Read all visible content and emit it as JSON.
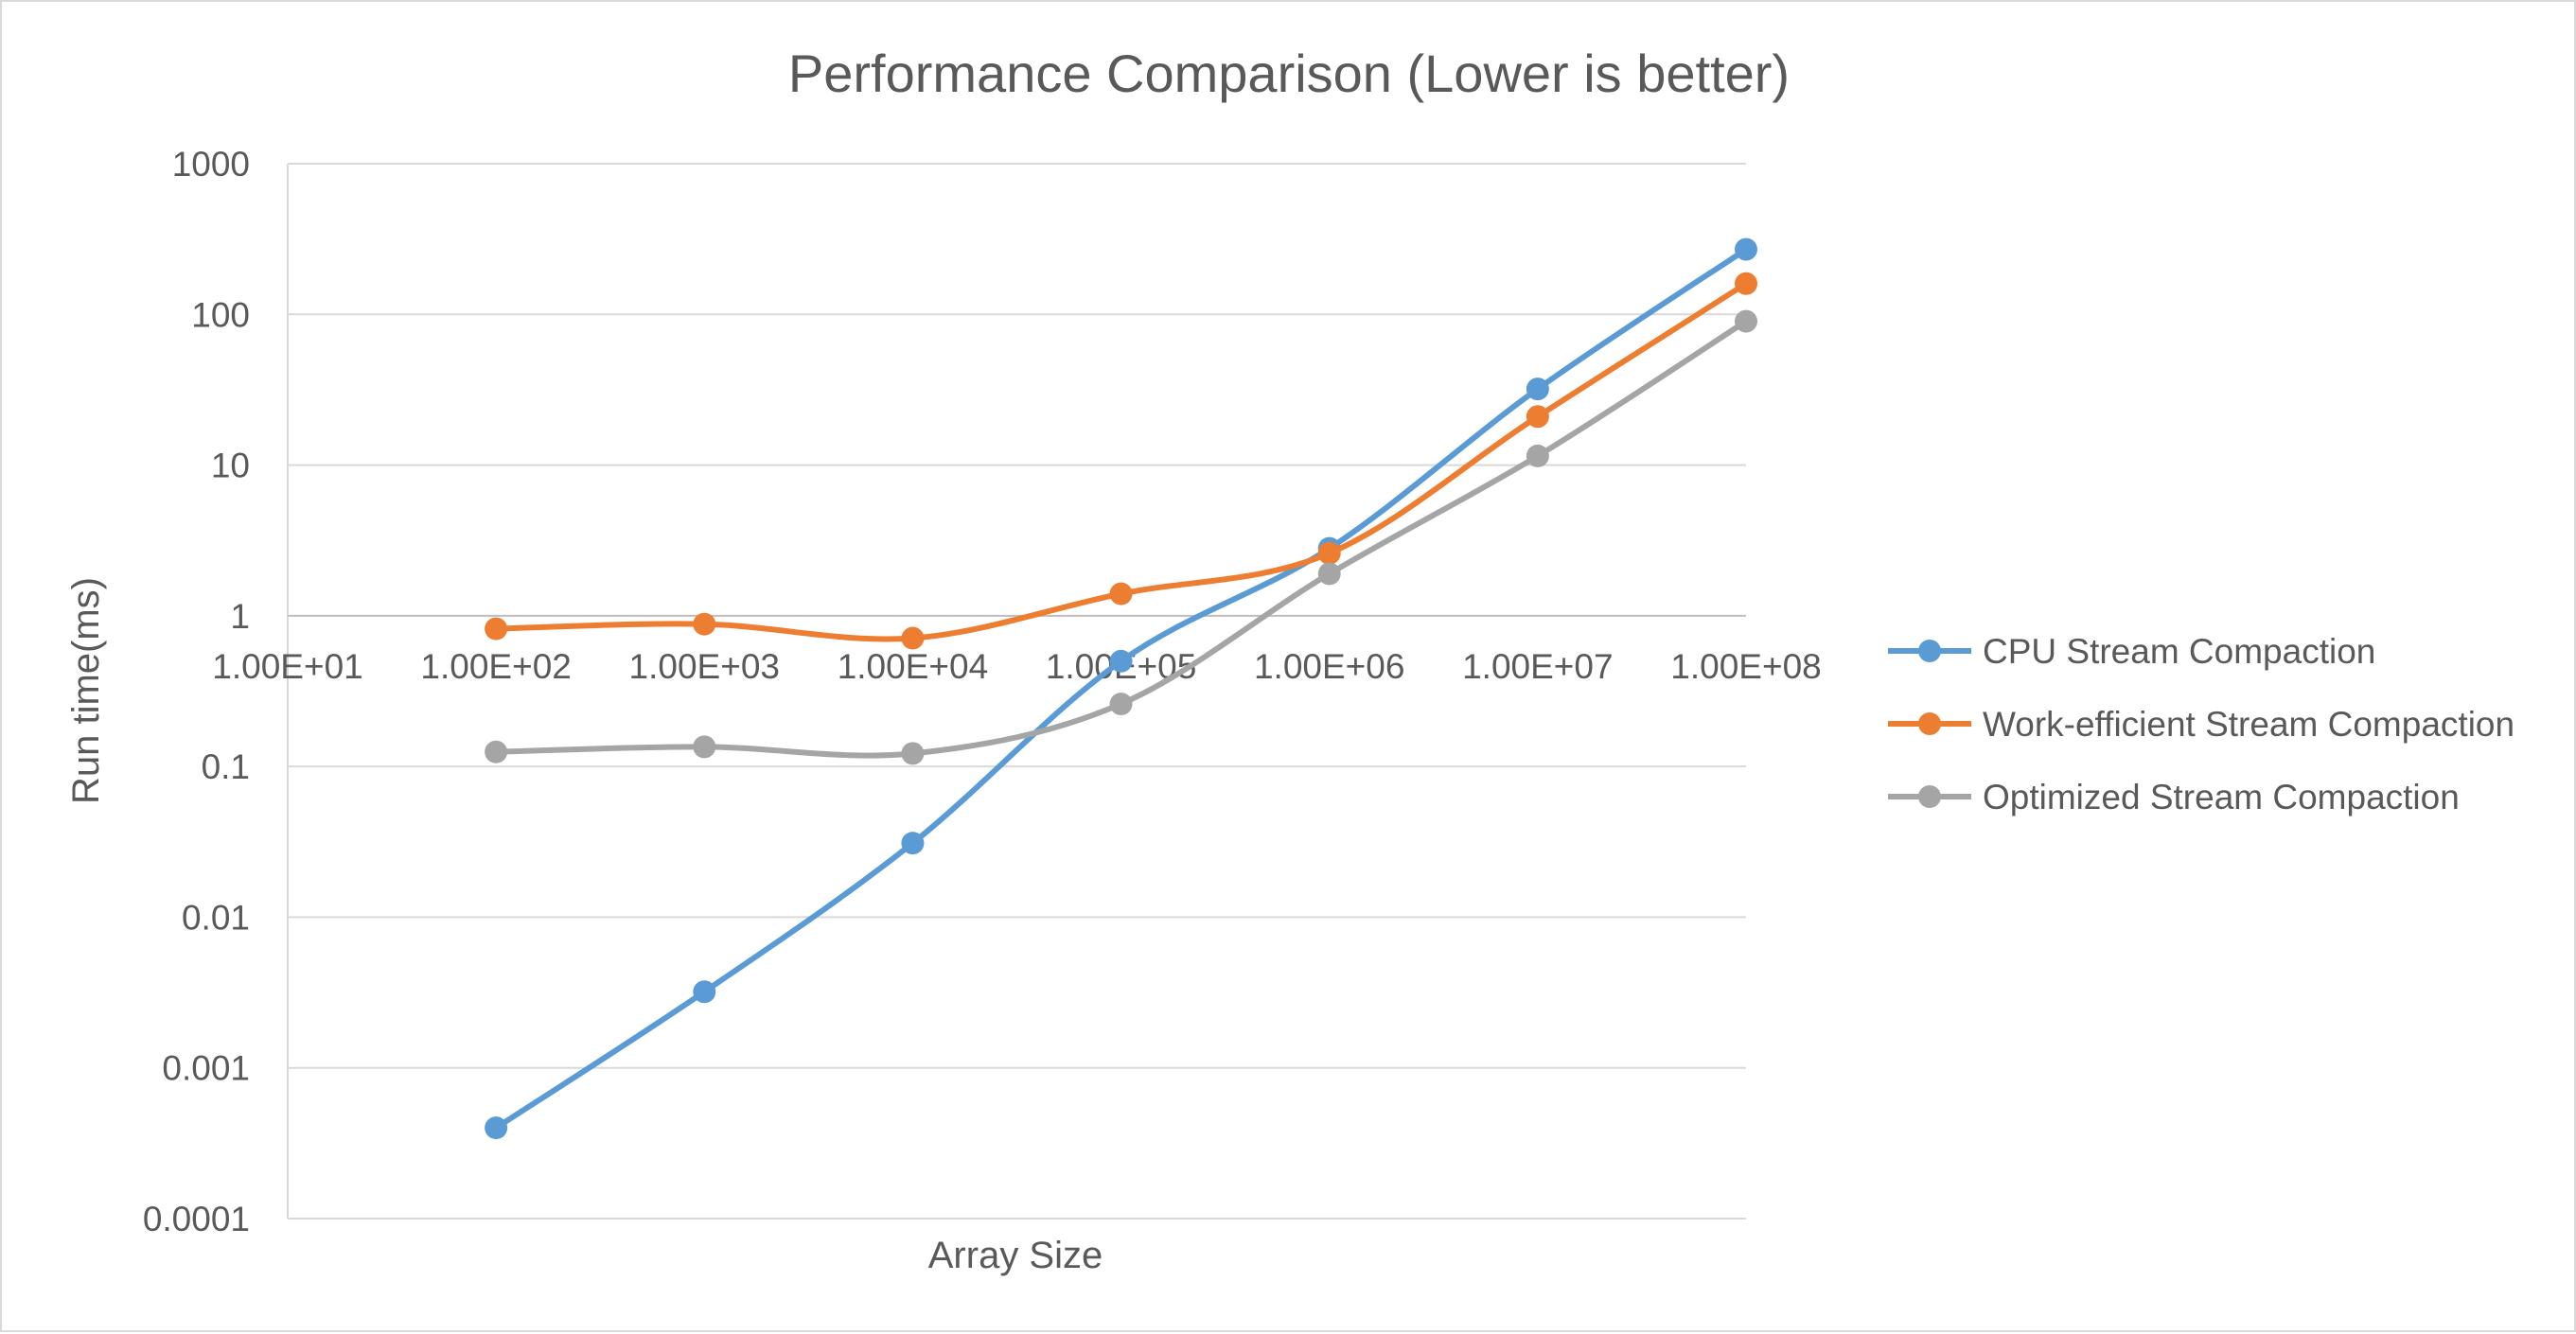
{
  "chart_data": {
    "type": "line",
    "title": "Performance Comparison (Lower is better)",
    "xlabel": "Array Size",
    "ylabel": "Run time(ms)",
    "x_scale": "log",
    "y_scale": "log",
    "xlim": [
      10,
      100000000
    ],
    "ylim": [
      0.0001,
      1000
    ],
    "x_tick_labels": [
      "1.00E+01",
      "1.00E+02",
      "1.00E+03",
      "1.00E+04",
      "1.00E+05",
      "1.00E+06",
      "1.00E+07",
      "1.00E+08"
    ],
    "y_tick_labels": [
      "0.0001",
      "0.001",
      "0.01",
      "0.1",
      "1",
      "10",
      "100",
      "1000"
    ],
    "grid": "horizontal",
    "legend_position": "right",
    "x": [
      100,
      1000,
      10000,
      100000,
      1000000,
      10000000,
      100000000
    ],
    "series": [
      {
        "name": "CPU Stream Compaction",
        "color": "#5b9bd5",
        "values": [
          0.0004,
          0.0032,
          0.031,
          0.5,
          2.8,
          32,
          270
        ]
      },
      {
        "name": "Work-efficient Stream Compaction",
        "color": "#ed7d31",
        "values": [
          0.82,
          0.88,
          0.71,
          1.4,
          2.6,
          21,
          160
        ]
      },
      {
        "name": "Optimized Stream Compaction",
        "color": "#a5a5a5",
        "values": [
          0.125,
          0.135,
          0.122,
          0.26,
          1.9,
          11.5,
          90
        ]
      }
    ]
  }
}
